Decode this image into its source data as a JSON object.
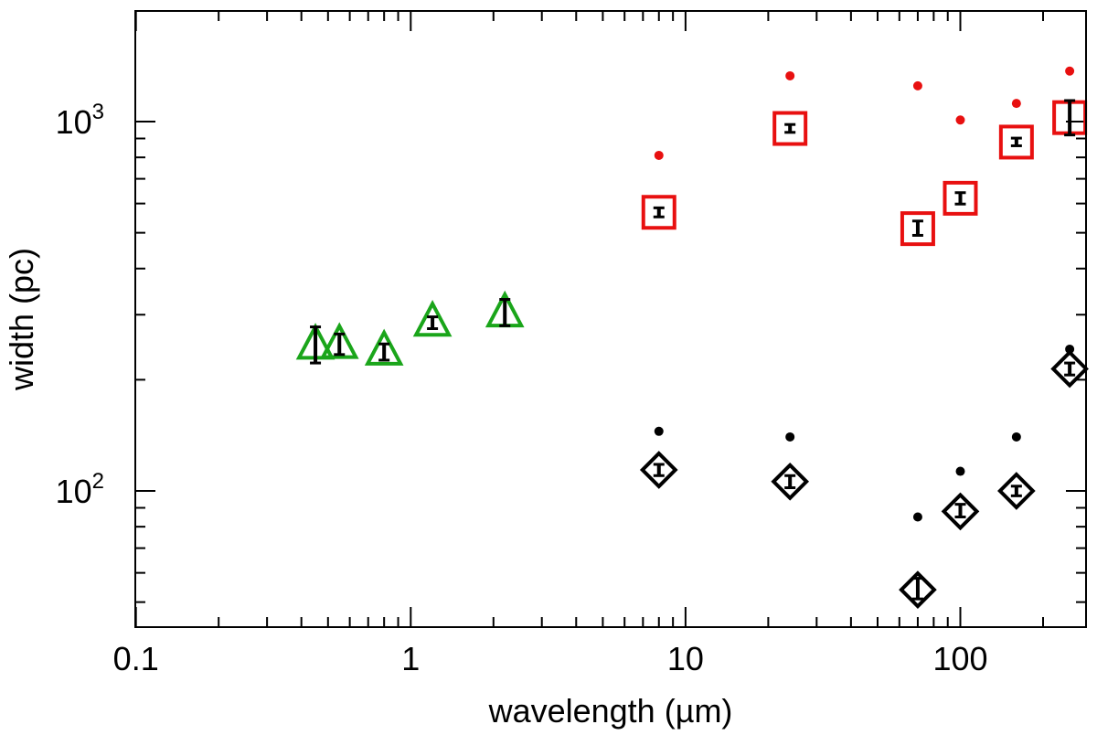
{
  "chart_data": {
    "type": "scatter",
    "title": "",
    "xlabel": "wavelength (µm)",
    "ylabel": "width (pc)",
    "x_scale": "log",
    "y_scale": "log",
    "xlim": [
      0.1,
      280
    ],
    "ylim": [
      46,
      2000
    ],
    "x_ticks": [
      {
        "value": 0.1,
        "label": "0.1"
      },
      {
        "value": 1,
        "label": "1"
      },
      {
        "value": 10,
        "label": "10"
      },
      {
        "value": 100,
        "label": "100"
      }
    ],
    "y_ticks": [
      {
        "value": 100,
        "base": "10",
        "exp": "2"
      },
      {
        "value": 1000,
        "base": "10",
        "exp": "3"
      }
    ],
    "grid": false,
    "legend": "none",
    "series": [
      {
        "marker": "triangle",
        "color": "#1aa51a",
        "points": [
          {
            "x": 0.45,
            "y": 247,
            "err_lo": 222,
            "err_hi": 278
          },
          {
            "x": 0.55,
            "y": 248,
            "err_lo": 234,
            "err_hi": 266
          },
          {
            "x": 0.8,
            "y": 238,
            "err_lo": 226,
            "err_hi": 250
          },
          {
            "x": 1.2,
            "y": 285,
            "err_lo": 275,
            "err_hi": 296
          },
          {
            "x": 2.2,
            "y": 302,
            "err_lo": 280,
            "err_hi": 330
          }
        ]
      },
      {
        "marker": "square",
        "color": "#e81010",
        "points": [
          {
            "x": 8,
            "y": 568,
            "err_lo": 552,
            "err_hi": 584
          },
          {
            "x": 24,
            "y": 958,
            "err_lo": 935,
            "err_hi": 982
          },
          {
            "x": 70,
            "y": 513,
            "err_lo": 492,
            "err_hi": 538
          },
          {
            "x": 100,
            "y": 620,
            "err_lo": 598,
            "err_hi": 642
          },
          {
            "x": 160,
            "y": 880,
            "err_lo": 860,
            "err_hi": 902
          },
          {
            "x": 250,
            "y": 1025,
            "err_lo": 920,
            "err_hi": 1140
          }
        ]
      },
      {
        "marker": "dot",
        "color": "#e81010",
        "points": [
          {
            "x": 8,
            "y": 810
          },
          {
            "x": 24,
            "y": 1330
          },
          {
            "x": 70,
            "y": 1250
          },
          {
            "x": 100,
            "y": 1010
          },
          {
            "x": 160,
            "y": 1120
          },
          {
            "x": 250,
            "y": 1370
          }
        ]
      },
      {
        "marker": "diamond",
        "color": "#000000",
        "points": [
          {
            "x": 8,
            "y": 114,
            "err_lo": 110,
            "err_hi": 118
          },
          {
            "x": 24,
            "y": 106,
            "err_lo": 102,
            "err_hi": 110
          },
          {
            "x": 70,
            "y": 54,
            "err_lo": 51,
            "err_hi": 58
          },
          {
            "x": 100,
            "y": 88,
            "err_lo": 85,
            "err_hi": 92
          },
          {
            "x": 160,
            "y": 100,
            "err_lo": 97,
            "err_hi": 103
          },
          {
            "x": 250,
            "y": 214,
            "err_lo": 206,
            "err_hi": 222
          }
        ]
      },
      {
        "marker": "dot",
        "color": "#000000",
        "points": [
          {
            "x": 8,
            "y": 145
          },
          {
            "x": 24,
            "y": 140
          },
          {
            "x": 70,
            "y": 85
          },
          {
            "x": 100,
            "y": 113
          },
          {
            "x": 160,
            "y": 140
          },
          {
            "x": 250,
            "y": 242
          }
        ]
      }
    ]
  }
}
